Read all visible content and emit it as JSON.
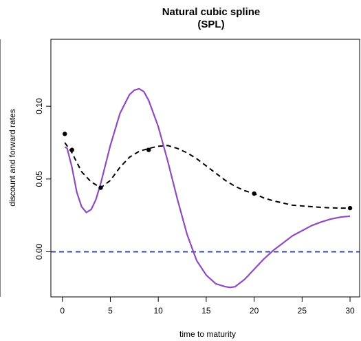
{
  "chart_data": {
    "type": "line",
    "title": "Natural cubic spline",
    "subtitle": "(SPL)",
    "xlabel": "time to maturity",
    "ylabel": "discount and forward rates",
    "xlim": [
      -1.2,
      31.0
    ],
    "ylim": [
      -0.031,
      0.146
    ],
    "x_ticks": [
      0,
      5,
      10,
      15,
      20,
      25,
      30
    ],
    "x_tick_labels": [
      "0",
      "5",
      "10",
      "15",
      "20",
      "25",
      "30"
    ],
    "y_ticks": [
      0.0,
      0.05,
      0.1
    ],
    "y_tick_labels": [
      "0.00",
      "0.05",
      "0.10"
    ],
    "grid": false,
    "legend": "none",
    "series": [
      {
        "style": "dashed",
        "color": "#000000",
        "x": [
          0.25,
          1,
          2,
          3,
          4,
          5,
          6,
          7,
          8,
          9,
          10,
          11,
          12,
          13,
          14,
          15,
          16,
          17,
          18,
          19,
          20,
          21,
          22,
          23,
          24,
          25,
          26,
          27,
          28,
          29,
          30
        ],
        "y": [
          0.075,
          0.068,
          0.055,
          0.048,
          0.044,
          0.049,
          0.058,
          0.065,
          0.069,
          0.071,
          0.0725,
          0.073,
          0.071,
          0.068,
          0.064,
          0.059,
          0.054,
          0.049,
          0.045,
          0.042,
          0.04,
          0.037,
          0.035,
          0.0335,
          0.032,
          0.0315,
          0.031,
          0.0305,
          0.0302,
          0.03,
          0.03
        ]
      },
      {
        "style": "solid",
        "color": "#8e4bbf",
        "x": [
          0.25,
          0.5,
          1,
          1.5,
          2,
          2.5,
          3,
          3.5,
          4,
          5,
          6,
          7,
          7.5,
          8,
          8.5,
          9,
          10,
          11,
          12,
          13,
          14,
          15,
          16,
          17,
          17.5,
          18,
          19,
          20,
          21,
          22,
          23,
          24,
          25,
          26,
          27,
          28,
          29,
          30
        ],
        "y": [
          0.072,
          0.071,
          0.058,
          0.041,
          0.031,
          0.027,
          0.029,
          0.036,
          0.047,
          0.073,
          0.095,
          0.108,
          0.111,
          0.112,
          0.11,
          0.104,
          0.086,
          0.062,
          0.036,
          0.012,
          -0.006,
          -0.016,
          -0.022,
          -0.024,
          -0.0245,
          -0.024,
          -0.019,
          -0.012,
          -0.005,
          0.001,
          0.006,
          0.011,
          0.0145,
          0.018,
          0.0205,
          0.0225,
          0.0238,
          0.0245
        ]
      },
      {
        "style": "dashed",
        "color": "#3848a8",
        "x": [
          -1.2,
          31.0
        ],
        "y": [
          0.0,
          0.0
        ]
      }
    ],
    "points": {
      "x": [
        0.25,
        1,
        4,
        9,
        20,
        30
      ],
      "y": [
        0.081,
        0.07,
        0.044,
        0.07,
        0.04,
        0.03
      ]
    }
  }
}
